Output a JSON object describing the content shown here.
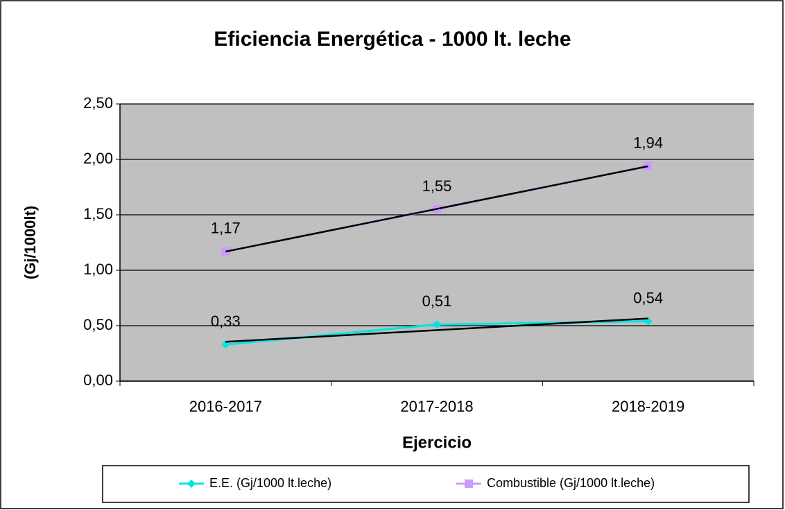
{
  "chart_data": {
    "type": "line",
    "title": "Eficiencia Energética - 1000 lt. leche",
    "y_label": "(Gj/1000lt)",
    "x_label": "Ejercicio",
    "categories": [
      "2016-2017",
      "2017-2018",
      "2018-2019"
    ],
    "series": [
      {
        "name": "E.E. (Gj/1000 lt.leche)",
        "color": "#00e5e5",
        "marker": "diamond",
        "values": [
          0.33,
          0.51,
          0.54
        ],
        "value_labels": [
          "0,33",
          "0,51",
          "0,54"
        ]
      },
      {
        "name": "Combustible (Gj/1000 lt.leche)",
        "color": "#cc99ff",
        "marker": "square",
        "values": [
          1.17,
          1.55,
          1.94
        ],
        "value_labels": [
          "1,17",
          "1,55",
          "1,94"
        ]
      }
    ],
    "ylim": [
      0,
      2.5
    ],
    "yticks": [
      {
        "value": 0,
        "label": "0,00"
      },
      {
        "value": 0.5,
        "label": "0,50"
      },
      {
        "value": 1,
        "label": "1,00"
      },
      {
        "value": 1.5,
        "label": "1,50"
      },
      {
        "value": 2,
        "label": "2,00"
      },
      {
        "value": 2.5,
        "label": "2,50"
      }
    ],
    "grid": true,
    "trendline": true,
    "legend": "bottom"
  }
}
